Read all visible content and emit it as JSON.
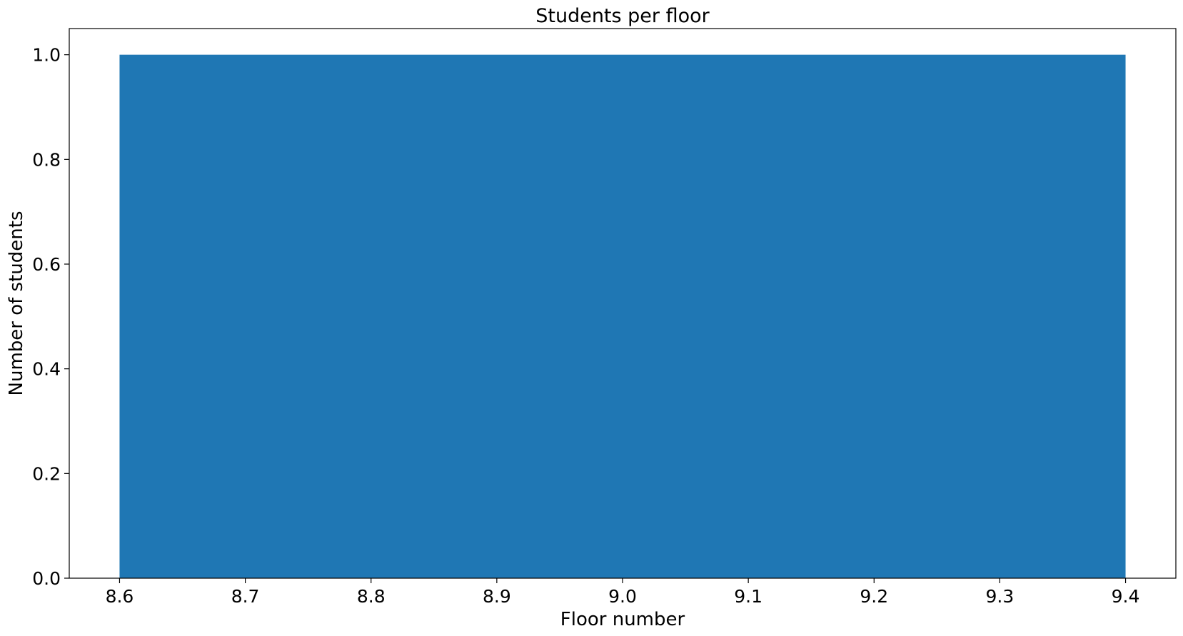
{
  "chart_data": {
    "type": "bar",
    "title": "Students per floor",
    "xlabel": "Floor number",
    "ylabel": "Number of students",
    "bars": [
      {
        "x_start": 8.6,
        "x_end": 9.4,
        "value": 1.0
      }
    ],
    "xlim": [
      8.56,
      9.44
    ],
    "ylim": [
      0,
      1.05
    ],
    "xticks": [
      "8.6",
      "8.7",
      "8.8",
      "8.9",
      "9.0",
      "9.1",
      "9.2",
      "9.3",
      "9.4"
    ],
    "yticks": [
      "0.0",
      "0.2",
      "0.4",
      "0.6",
      "0.8",
      "1.0"
    ],
    "bar_color": "#1f77b4",
    "grid": false,
    "legend": "none"
  }
}
